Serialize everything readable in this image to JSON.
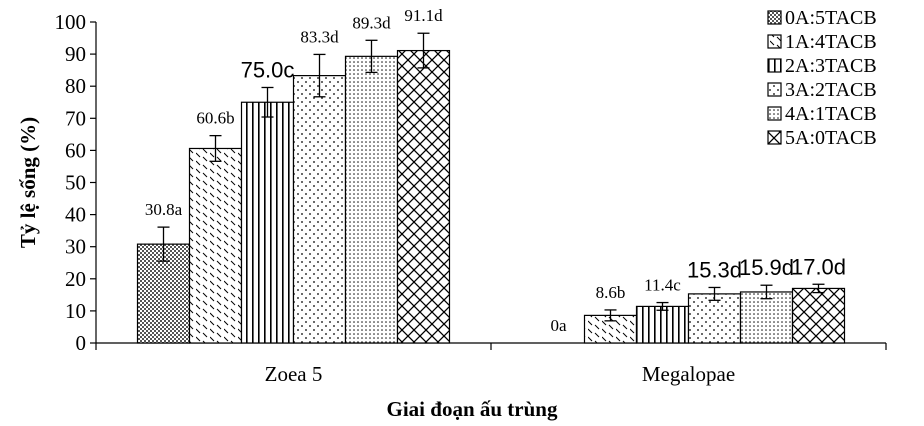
{
  "chart_data": {
    "type": "bar",
    "title": "",
    "xlabel": "Giai đoạn ấu trùng",
    "ylabel": "Tỷ lệ sống (%)",
    "ylim": [
      0,
      100
    ],
    "yticks": [
      "0",
      "10",
      "20",
      "30",
      "40",
      "50",
      "60",
      "70",
      "80",
      "90",
      "100"
    ],
    "grid": false,
    "legend_position": "top-right",
    "categories": [
      "Zoea 5",
      "Megalopae"
    ],
    "series": [
      {
        "name": "0A:5TACB",
        "pattern": "checker",
        "values": [
          30.8,
          0
        ],
        "errors": [
          5.3,
          0
        ],
        "labels": [
          "30.8a",
          "0a"
        ]
      },
      {
        "name": "1A:4TACB",
        "pattern": "dashes",
        "values": [
          60.6,
          8.6
        ],
        "errors": [
          4.0,
          1.7
        ],
        "labels": [
          "60.6b",
          "8.6b"
        ]
      },
      {
        "name": "2A:3TACB",
        "pattern": "vertical",
        "values": [
          75.0,
          11.4
        ],
        "errors": [
          4.6,
          1.2
        ],
        "labels": [
          "75.0c",
          "11.4c"
        ]
      },
      {
        "name": "3A:2TACB",
        "pattern": "dots",
        "values": [
          83.3,
          15.3
        ],
        "errors": [
          6.6,
          2.0
        ],
        "labels": [
          "83.3d",
          "15.3d"
        ]
      },
      {
        "name": "4A:1TACB",
        "pattern": "grid-dots",
        "values": [
          89.3,
          15.9
        ],
        "errors": [
          5.0,
          2.1
        ],
        "labels": [
          "89.3d",
          "15.9d"
        ]
      },
      {
        "name": "5A:0TACB",
        "pattern": "crosshatch",
        "values": [
          91.1,
          17.0
        ],
        "errors": [
          5.4,
          1.3
        ],
        "labels": [
          "91.1d",
          "17.0d"
        ]
      }
    ],
    "colors": {
      "bar_fill": "#ffffff",
      "ink": "#000000",
      "checker_dark": "#555555"
    }
  }
}
